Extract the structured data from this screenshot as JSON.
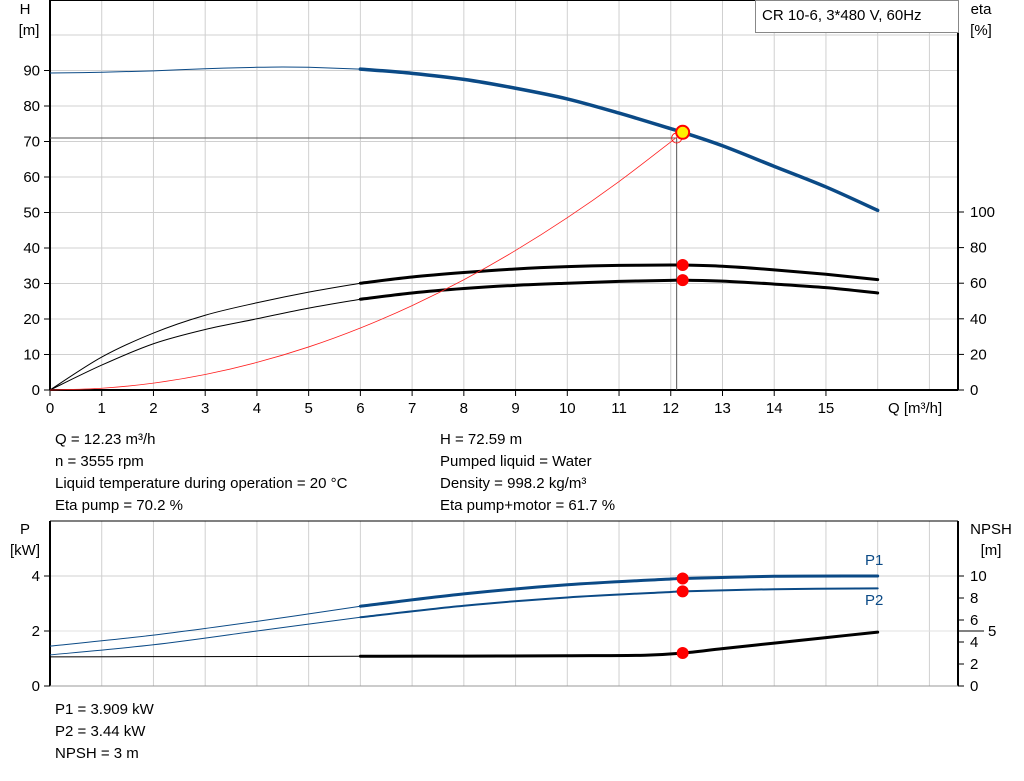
{
  "chart_data": [
    {
      "type": "line",
      "title": "CR 10-6, 3*480 V, 60Hz",
      "xlabel": "Q [m³/h]",
      "ylabel_left": [
        "H",
        "[m]"
      ],
      "ylabel_right": [
        "eta",
        "[%]"
      ],
      "xlim": [
        0,
        17.5
      ],
      "ylim_left": [
        0,
        110
      ],
      "ylim_right_ticks": [
        0,
        20,
        40,
        60,
        80,
        100
      ],
      "x_ticks": [
        0,
        1,
        2,
        3,
        4,
        5,
        6,
        7,
        8,
        9,
        10,
        11,
        12,
        13,
        14,
        15
      ],
      "y_ticks_left": [
        0,
        10,
        20,
        30,
        40,
        50,
        60,
        70,
        80,
        90
      ],
      "grid": true,
      "series": [
        {
          "key": "H",
          "axis": "left",
          "color": "#0b4a86",
          "thin_until": 6,
          "x": [
            0,
            1,
            2,
            3,
            4,
            4.5,
            5,
            6,
            7,
            8,
            9,
            10,
            11,
            12,
            12.23,
            13,
            14,
            15,
            16
          ],
          "y": [
            89.3,
            89.5,
            89.9,
            90.5,
            90.9,
            91.0,
            90.9,
            90.4,
            89.2,
            87.5,
            85.0,
            82.0,
            78.0,
            73.6,
            72.59,
            68.8,
            63.0,
            57.2,
            50.6
          ]
        },
        {
          "key": "eta_pump",
          "axis": "right",
          "color": "#000000",
          "thin_until": 6,
          "x": [
            0,
            1,
            2,
            3,
            4,
            5,
            6,
            7,
            8,
            9,
            10,
            11,
            12,
            12.23,
            13,
            14,
            15,
            16
          ],
          "y": [
            0,
            18.5,
            32,
            42,
            49,
            55,
            60,
            63.5,
            66,
            68,
            69.3,
            70,
            70.2,
            70.2,
            69.5,
            67.5,
            65,
            62
          ]
        },
        {
          "key": "eta_pump_motor",
          "axis": "right",
          "color": "#000000",
          "thin_until": 6,
          "x": [
            0,
            1,
            2,
            3,
            4,
            5,
            6,
            7,
            8,
            9,
            10,
            11,
            12,
            12.23,
            13,
            14,
            15,
            16
          ],
          "y": [
            0,
            14,
            26,
            34,
            40,
            46,
            51,
            54.5,
            57,
            58.8,
            60,
            61,
            61.6,
            61.7,
            61.2,
            59.5,
            57.5,
            54.5
          ]
        },
        {
          "key": "system",
          "axis": "left",
          "color": "#ff2020",
          "thin_until": 99,
          "x": [
            0,
            1,
            2,
            3,
            4,
            5,
            6,
            7,
            8,
            9,
            10,
            11,
            12,
            12.23
          ],
          "y": [
            0,
            0.49,
            1.94,
            4.37,
            7.77,
            12.13,
            17.47,
            23.78,
            31.06,
            39.31,
            48.53,
            58.72,
            69.88,
            72.59
          ]
        }
      ],
      "duty_point": {
        "Q": 12.23,
        "H": 72.59,
        "eta_pump": 70.2,
        "eta_pump_motor": 61.7
      }
    },
    {
      "type": "line",
      "ylabel_left": [
        "P",
        "[kW]"
      ],
      "ylabel_right": [
        "NPSH",
        "[m]"
      ],
      "xlim": [
        0,
        17.5
      ],
      "ylim_left": [
        0,
        5.5
      ],
      "y_ticks_left": [
        0,
        2,
        4
      ],
      "y_ticks_right": [
        0,
        2,
        4,
        5,
        6,
        8,
        10
      ],
      "grid": true,
      "series": [
        {
          "key": "P1",
          "name": "P1",
          "axis": "left",
          "color": "#0b4a86",
          "thin_until": 6,
          "x": [
            0,
            2,
            4,
            6,
            8,
            10,
            12,
            12.23,
            14,
            16
          ],
          "y": [
            1.45,
            1.85,
            2.35,
            2.9,
            3.35,
            3.68,
            3.89,
            3.909,
            3.99,
            4.0
          ]
        },
        {
          "key": "P2",
          "name": "P2",
          "axis": "left",
          "color": "#0b4a86",
          "thin_until": 6,
          "x": [
            0,
            2,
            4,
            6,
            8,
            10,
            12,
            12.23,
            14,
            16
          ],
          "y": [
            1.13,
            1.5,
            2.0,
            2.5,
            2.92,
            3.22,
            3.42,
            3.44,
            3.52,
            3.55
          ]
        },
        {
          "key": "NPSH",
          "axis": "right",
          "color": "#000000",
          "thin_until": 6,
          "x": [
            0,
            2,
            4,
            6,
            8,
            10,
            11.5,
            12.23,
            13,
            14,
            15,
            16
          ],
          "y": [
            2.65,
            2.67,
            2.68,
            2.7,
            2.72,
            2.75,
            2.8,
            3.0,
            3.4,
            3.9,
            4.4,
            4.9
          ]
        }
      ],
      "duty_point": {
        "P1": 3.909,
        "P2": 3.44,
        "NPSH": 3
      }
    }
  ],
  "info_top_left": [
    "Q = 12.23 m³/h",
    "n = 3555 rpm",
    "Liquid temperature during operation = 20 °C",
    "Eta pump = 70.2 %"
  ],
  "info_top_right": [
    "H = 72.59 m",
    "Pumped liquid = Water",
    "Density = 998.2 kg/m³",
    "Eta pump+motor = 61.7 %"
  ],
  "info_bottom": [
    "P1 = 3.909 kW",
    "P2 = 3.44 kW",
    "NPSH = 3 m"
  ],
  "colors": {
    "curve_blue": "#0b4a86",
    "duty_marker": "#ff0000",
    "duty_fill": "#ffee00",
    "grid": "#d0d0d0"
  }
}
